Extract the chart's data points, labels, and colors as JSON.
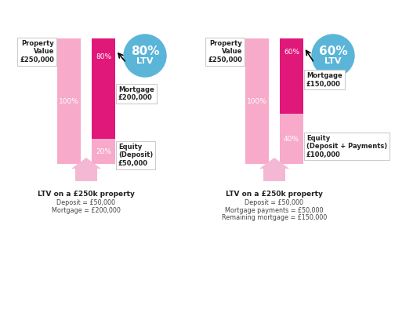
{
  "bg_color": "#ffffff",
  "light_pink": "#f7aaca",
  "dark_pink": "#e0187a",
  "blue": "#5ab5d8",
  "text_dark": "#333333",
  "chart1": {
    "bar2_mortgage_pct": 80,
    "bar2_equity_pct": 20,
    "ltv_pct": "80%",
    "ltv_label": "LTV",
    "property_label": "Property\nValue\n£250,000",
    "mortgage_label": "Mortgage\n£200,000",
    "equity_label": "Equity\n(Deposit)\n£50,000",
    "footer_bold": "LTV on a £250k property",
    "footer_lines": [
      "Deposit = £50,000",
      "Mortgage = £200,000"
    ]
  },
  "chart2": {
    "bar2_mortgage_pct": 60,
    "bar2_equity_pct": 40,
    "ltv_pct": "60%",
    "ltv_label": "LTV",
    "property_label": "Property\nValue\n£250,000",
    "mortgage_label": "Mortgage\n£150,000",
    "equity_label": "Equity\n(Deposit + Payments)\n£100,000",
    "footer_bold": "LTV on a £250k property",
    "footer_lines": [
      "Deposit = £50,000",
      "Mortgage payments = £50,000",
      "Remaining mortgage = £150,000"
    ]
  }
}
